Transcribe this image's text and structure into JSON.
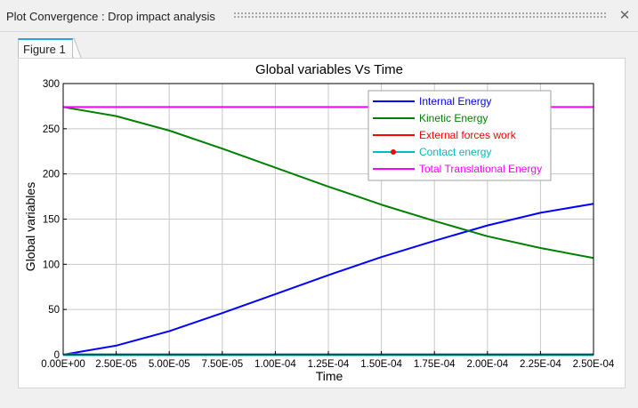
{
  "window": {
    "title": "Plot Convergence : Drop impact analysis",
    "close_glyph": "✕"
  },
  "tabs": [
    {
      "label": "Figure 1",
      "active": true
    }
  ],
  "chart_data": {
    "type": "line",
    "title": "Global variables Vs Time",
    "xlabel": "Time",
    "ylabel": "Global variables",
    "xlim": [
      0,
      0.00025
    ],
    "ylim": [
      0,
      300
    ],
    "grid": true,
    "legend_position": "top-right",
    "x_tick_labels": [
      "0.00E+00",
      "2.50E-05",
      "5.00E-05",
      "7.50E-05",
      "1.00E-04",
      "1.25E-04",
      "1.50E-04",
      "1.75E-04",
      "2.00E-04",
      "2.25E-04",
      "2.50E-04"
    ],
    "y_tick_labels": [
      "0",
      "50",
      "100",
      "150",
      "200",
      "250",
      "300"
    ],
    "x": [
      0,
      2.5e-05,
      5e-05,
      7.5e-05,
      0.0001,
      0.000125,
      0.00015,
      0.000175,
      0.0002,
      0.000225,
      0.00025
    ],
    "series": [
      {
        "name": "Internal Energy",
        "color": "#0000ff",
        "marker": "none",
        "values": [
          0,
          10,
          26,
          46,
          67,
          88,
          108,
          126,
          143,
          157,
          167
        ]
      },
      {
        "name": "Kinetic Energy",
        "color": "#008000",
        "marker": "none",
        "values": [
          274,
          264,
          248,
          228,
          207,
          186,
          166,
          148,
          131,
          118,
          107
        ]
      },
      {
        "name": "External forces work",
        "color": "#ff0000",
        "marker": "none",
        "values": [
          0,
          0,
          0,
          0,
          0,
          0,
          0,
          0,
          0,
          0,
          0
        ]
      },
      {
        "name": "Contact energy",
        "color": "#00bcbc",
        "marker": "dot-red",
        "values": [
          0,
          0,
          0,
          0,
          0,
          0,
          0,
          0,
          0,
          0,
          0
        ]
      },
      {
        "name": "Total Translational Energy",
        "color": "#ff00ff",
        "marker": "none",
        "values": [
          274,
          274,
          274,
          274,
          274,
          274,
          274,
          274,
          274,
          274,
          274
        ]
      }
    ]
  }
}
